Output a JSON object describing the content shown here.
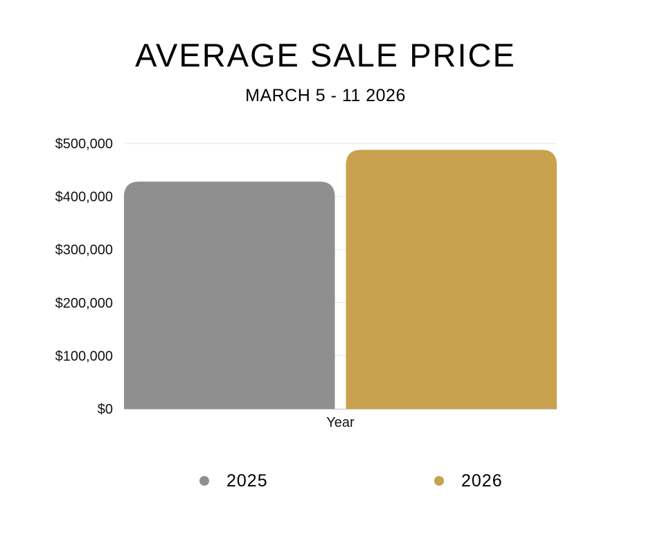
{
  "chart_data": {
    "type": "bar",
    "title": "AVERAGE SALE PRICE",
    "subtitle": "MARCH 5 - 11 2026",
    "xlabel": "Year",
    "ylabel": "",
    "categories": [
      "Year"
    ],
    "series": [
      {
        "name": "2025",
        "values": [
          428000
        ],
        "color": "#8f8f8f"
      },
      {
        "name": "2026",
        "values": [
          488000
        ],
        "color": "#c8a24e"
      }
    ],
    "ylim": [
      0,
      500000
    ],
    "yticks": [
      0,
      100000,
      200000,
      300000,
      400000,
      500000
    ],
    "ytick_labels": [
      "$0",
      "$100,000",
      "$200,000",
      "$300,000",
      "$400,000",
      "$500,000"
    ],
    "grid": true,
    "legend_position": "bottom"
  }
}
